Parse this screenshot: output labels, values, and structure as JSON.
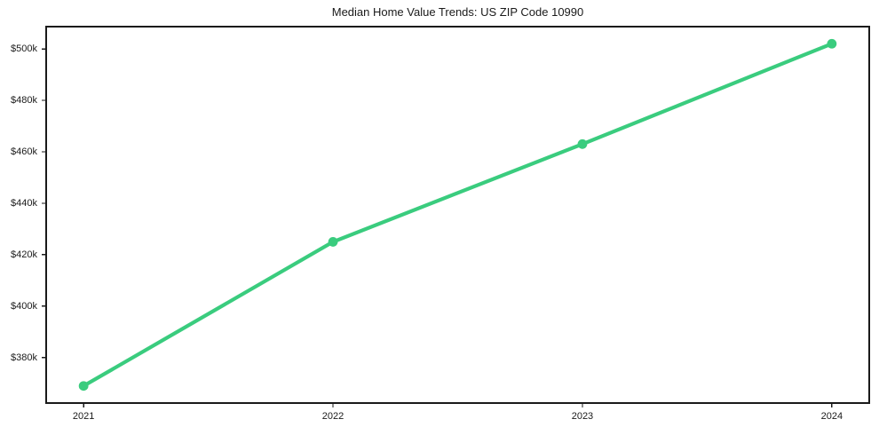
{
  "chart_data": {
    "type": "line",
    "title": "Median Home Value Trends: US ZIP Code 10990",
    "x": [
      2021,
      2022,
      2023,
      2024
    ],
    "xtick_labels": [
      "2021",
      "2022",
      "2023",
      "2024"
    ],
    "values": [
      369000,
      425000,
      463000,
      502000
    ],
    "ytick_values": [
      380000,
      400000,
      420000,
      440000,
      460000,
      480000,
      500000
    ],
    "ytick_labels": [
      "$380k",
      "$400k",
      "$420k",
      "$440k",
      "$460k",
      "$480k",
      "$500k"
    ],
    "xlim": [
      2020.85,
      2024.15
    ],
    "ylim": [
      362350,
      508650
    ],
    "grid": false,
    "legend": "none",
    "marker": "circle",
    "line_color": "#3acc7e"
  },
  "colors": {
    "line": "#3acc7e",
    "axis": "#1a1a1a",
    "text": "#1a1a1a",
    "background": "#ffffff"
  }
}
